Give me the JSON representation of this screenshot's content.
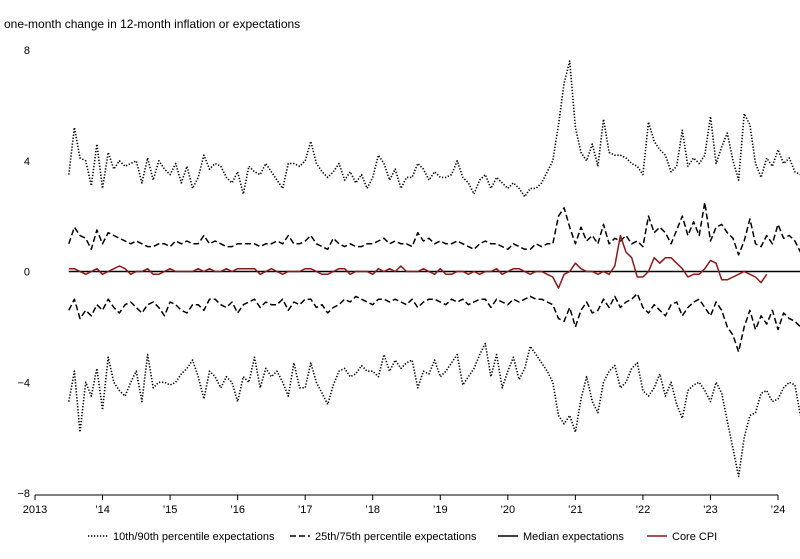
{
  "chart_data": {
    "type": "line",
    "title": "",
    "ylabel": "one-month change in 12-month inflation or expectations",
    "xlabel": "",
    "ylim": [
      -8,
      8
    ],
    "yticks": [
      8,
      4,
      0,
      -4,
      -8
    ],
    "ytick_labels": [
      "8",
      "4",
      "0",
      "−4",
      "−8"
    ],
    "xlim": [
      2013.0,
      2024.0
    ],
    "xticks": [
      2013,
      2014,
      2015,
      2016,
      2017,
      2018,
      2019,
      2020,
      2021,
      2022,
      2023,
      2024
    ],
    "xtick_labels": [
      "2013",
      "’14",
      "’15",
      "’16",
      "’17",
      "’18",
      "’19",
      "’20",
      "’21",
      "’22",
      "’23",
      "’24"
    ],
    "legend_position": "bottom",
    "x_start": 2013.5,
    "x_step_months": 1,
    "series": [
      {
        "name": "10th/90th percentile expectations",
        "style": "dotted",
        "color": "#000000",
        "upper": [
          3.5,
          5.2,
          4.1,
          4.0,
          3.1,
          4.6,
          3.0,
          4.3,
          3.7,
          4.0,
          3.8,
          3.9,
          4.0,
          3.2,
          4.1,
          3.3,
          4.0,
          3.7,
          3.5,
          3.9,
          3.2,
          3.8,
          3.0,
          3.4,
          4.2,
          3.7,
          3.9,
          3.8,
          3.4,
          3.2,
          3.6,
          2.8,
          3.8,
          3.6,
          3.5,
          3.9,
          3.6,
          3.3,
          3.0,
          3.9,
          3.9,
          3.8,
          4.0,
          4.7,
          3.9,
          3.6,
          3.4,
          3.6,
          3.9,
          3.3,
          3.6,
          3.2,
          3.5,
          3.0,
          3.4,
          4.2,
          3.9,
          3.3,
          3.7,
          3.0,
          3.4,
          3.4,
          3.9,
          3.7,
          3.3,
          3.6,
          3.4,
          3.4,
          3.5,
          4.0,
          3.4,
          3.2,
          2.8,
          3.3,
          3.5,
          3.0,
          3.4,
          3.2,
          3.0,
          3.2,
          3.0,
          2.7,
          3.0,
          3.0,
          3.2,
          3.6,
          4.0,
          5.3,
          6.8,
          7.6,
          5.2,
          4.3,
          4.0,
          4.6,
          3.8,
          5.5,
          4.3,
          4.2,
          4.2,
          4.1,
          3.9,
          3.8,
          3.5,
          5.4,
          4.7,
          4.4,
          4.2,
          3.6,
          3.8,
          5.1,
          3.8,
          4.1,
          3.9,
          4.2,
          5.6,
          3.9,
          4.5,
          5.0,
          4.0,
          3.3,
          5.7,
          5.3,
          3.9,
          3.4,
          4.1,
          3.8,
          4.4,
          3.9,
          4.1,
          3.6,
          3.5
        ],
        "lower": [
          -4.7,
          -3.6,
          -5.8,
          -4.0,
          -4.5,
          -3.5,
          -5.0,
          -3.1,
          -4.0,
          -4.3,
          -4.5,
          -4.0,
          -3.6,
          -4.7,
          -3.0,
          -4.2,
          -4.0,
          -4.0,
          -4.1,
          -4.0,
          -3.7,
          -3.5,
          -3.2,
          -3.8,
          -4.6,
          -3.6,
          -3.8,
          -4.2,
          -3.8,
          -4.0,
          -4.7,
          -3.8,
          -4.0,
          -3.1,
          -4.2,
          -3.5,
          -3.8,
          -3.6,
          -4.0,
          -4.5,
          -3.3,
          -4.2,
          -4.2,
          -3.3,
          -4.0,
          -4.4,
          -4.8,
          -4.1,
          -3.6,
          -3.5,
          -3.8,
          -3.7,
          -3.4,
          -3.6,
          -3.6,
          -3.8,
          -3.0,
          -3.6,
          -3.2,
          -3.5,
          -3.3,
          -3.2,
          -4.2,
          -3.6,
          -3.7,
          -3.2,
          -3.8,
          -3.6,
          -3.3,
          -3.0,
          -4.1,
          -3.8,
          -3.5,
          -3.0,
          -2.6,
          -3.8,
          -3.0,
          -4.2,
          -3.6,
          -3.1,
          -3.9,
          -3.5,
          -2.7,
          -3.0,
          -3.3,
          -3.6,
          -4.0,
          -5.2,
          -5.5,
          -5.2,
          -5.8,
          -4.6,
          -3.8,
          -4.7,
          -5.1,
          -4.0,
          -3.6,
          -3.4,
          -4.2,
          -4.0,
          -3.5,
          -3.3,
          -4.3,
          -4.5,
          -4.2,
          -3.7,
          -4.5,
          -4.0,
          -4.8,
          -5.3,
          -4.3,
          -4.1,
          -4.0,
          -4.3,
          -4.7,
          -4.0,
          -4.4,
          -5.4,
          -6.4,
          -7.4,
          -6.0,
          -5.2,
          -5.1,
          -4.4,
          -4.3,
          -4.7,
          -4.6,
          -4.2,
          -4.0,
          -4.1,
          -5.2
        ]
      },
      {
        "name": "25th/75th percentile expectations",
        "style": "dashed",
        "color": "#000000",
        "upper": [
          1.0,
          1.6,
          1.3,
          1.2,
          0.8,
          1.5,
          1.0,
          1.4,
          1.3,
          1.2,
          1.1,
          1.0,
          1.1,
          1.0,
          0.9,
          0.9,
          1.0,
          1.0,
          0.9,
          1.1,
          1.0,
          1.1,
          1.0,
          1.0,
          1.3,
          1.0,
          1.1,
          1.0,
          0.9,
          0.9,
          1.0,
          1.0,
          1.0,
          1.0,
          0.9,
          1.0,
          1.0,
          1.1,
          1.0,
          1.3,
          1.0,
          1.0,
          1.1,
          1.3,
          1.0,
          0.9,
          0.8,
          1.2,
          1.0,
          0.9,
          1.0,
          0.9,
          0.9,
          1.0,
          1.0,
          1.1,
          1.2,
          1.0,
          1.1,
          1.0,
          1.0,
          0.9,
          1.4,
          1.1,
          1.2,
          1.0,
          1.1,
          1.0,
          1.0,
          1.1,
          1.0,
          0.9,
          0.8,
          1.0,
          1.1,
          1.0,
          1.0,
          0.9,
          0.8,
          1.0,
          0.9,
          0.8,
          0.8,
          1.0,
          0.9,
          1.0,
          1.0,
          2.0,
          2.3,
          1.6,
          1.0,
          1.6,
          1.1,
          1.3,
          1.0,
          1.7,
          1.0,
          1.2,
          1.1,
          1.3,
          1.0,
          1.1,
          0.9,
          2.0,
          1.4,
          1.6,
          1.4,
          1.0,
          1.5,
          2.0,
          1.3,
          1.8,
          1.3,
          2.5,
          1.1,
          1.6,
          1.7,
          1.4,
          1.2,
          0.6,
          1.1,
          1.9,
          1.0,
          0.9,
          1.3,
          1.0,
          1.7,
          1.2,
          1.3,
          1.1,
          0.7
        ],
        "lower": [
          -1.4,
          -1.0,
          -1.7,
          -1.4,
          -1.6,
          -1.2,
          -1.4,
          -1.0,
          -1.3,
          -1.5,
          -1.2,
          -1.1,
          -1.3,
          -1.5,
          -1.2,
          -1.1,
          -1.3,
          -1.6,
          -1.1,
          -1.2,
          -1.4,
          -1.5,
          -1.2,
          -1.2,
          -1.4,
          -1.0,
          -1.0,
          -1.2,
          -1.3,
          -1.1,
          -1.5,
          -1.2,
          -1.1,
          -1.0,
          -1.3,
          -1.1,
          -1.2,
          -1.2,
          -1.0,
          -1.4,
          -1.1,
          -1.2,
          -1.0,
          -1.0,
          -1.3,
          -1.2,
          -1.5,
          -1.3,
          -1.2,
          -1.0,
          -1.1,
          -0.9,
          -1.0,
          -1.1,
          -1.2,
          -1.0,
          -1.0,
          -1.1,
          -1.0,
          -1.1,
          -1.2,
          -1.0,
          -1.3,
          -1.1,
          -1.0,
          -1.0,
          -1.1,
          -1.2,
          -1.0,
          -1.1,
          -1.0,
          -1.2,
          -1.1,
          -1.0,
          -1.0,
          -1.3,
          -1.0,
          -1.1,
          -1.2,
          -1.0,
          -1.1,
          -1.0,
          -0.9,
          -1.0,
          -1.0,
          -1.1,
          -1.2,
          -1.7,
          -1.8,
          -1.3,
          -2.0,
          -1.4,
          -1.1,
          -1.5,
          -1.4,
          -1.0,
          -1.3,
          -0.9,
          -1.3,
          -1.1,
          -1.0,
          -0.8,
          -1.3,
          -1.5,
          -1.2,
          -1.4,
          -1.6,
          -1.2,
          -1.1,
          -1.6,
          -1.3,
          -1.1,
          -1.0,
          -1.3,
          -1.6,
          -1.1,
          -1.4,
          -2.0,
          -2.3,
          -2.9,
          -2.0,
          -1.4,
          -2.1,
          -1.6,
          -1.9,
          -1.4,
          -2.1,
          -1.5,
          -1.7,
          -1.8,
          -2.0
        ]
      },
      {
        "name": "Median expectations",
        "style": "solid",
        "color": "#000000",
        "value": 0
      },
      {
        "name": "Core CPI",
        "style": "solid",
        "color": "#8b1a1a",
        "values": [
          0.1,
          0.1,
          0.0,
          -0.1,
          0.0,
          0.1,
          -0.1,
          0.0,
          0.1,
          0.2,
          0.1,
          -0.1,
          0.0,
          0.0,
          0.1,
          -0.1,
          -0.1,
          0.0,
          0.1,
          0.0,
          0.0,
          0.0,
          0.0,
          0.1,
          0.0,
          0.1,
          0.0,
          0.0,
          0.1,
          0.0,
          0.1,
          0.1,
          0.1,
          0.1,
          -0.1,
          0.0,
          0.1,
          0.0,
          -0.1,
          0.0,
          0.0,
          0.0,
          0.1,
          0.1,
          0.0,
          -0.1,
          -0.1,
          0.0,
          0.1,
          0.1,
          -0.1,
          0.0,
          0.0,
          0.0,
          -0.1,
          0.1,
          0.0,
          0.1,
          0.0,
          0.2,
          0.0,
          0.0,
          0.0,
          0.1,
          0.0,
          -0.1,
          0.1,
          -0.1,
          -0.1,
          0.0,
          0.0,
          -0.1,
          0.0,
          -0.1,
          0.0,
          0.0,
          0.1,
          -0.1,
          0.0,
          0.1,
          0.1,
          0.0,
          -0.1,
          0.0,
          0.0,
          -0.1,
          -0.2,
          -0.6,
          -0.1,
          0.0,
          0.3,
          0.1,
          0.0,
          0.0,
          -0.1,
          0.0,
          -0.1,
          0.2,
          1.3,
          0.7,
          0.5,
          -0.2,
          -0.2,
          0.0,
          0.5,
          0.3,
          0.5,
          0.5,
          0.3,
          0.1,
          -0.2,
          -0.1,
          -0.1,
          0.1,
          0.4,
          0.3,
          -0.3,
          -0.3,
          -0.2,
          -0.1,
          0.0,
          -0.1,
          -0.2,
          -0.4,
          -0.1
        ]
      }
    ]
  }
}
